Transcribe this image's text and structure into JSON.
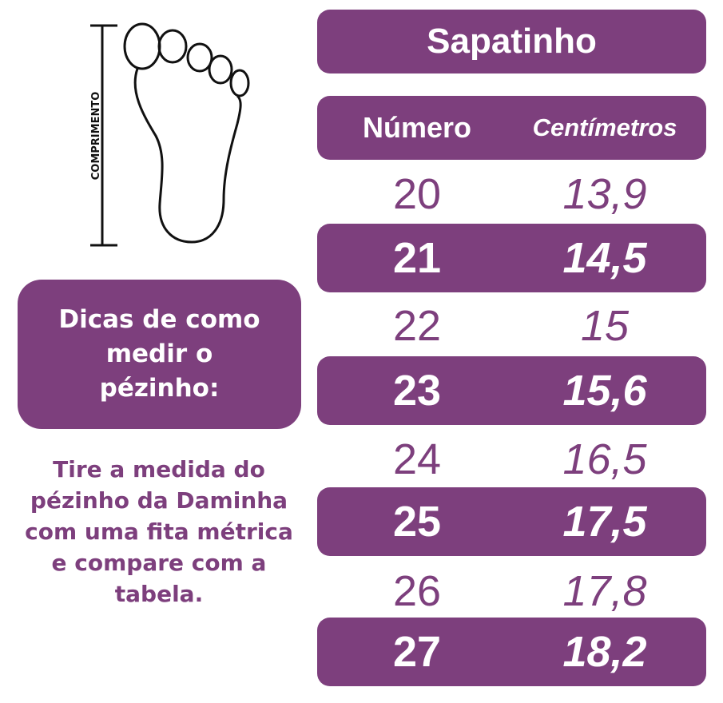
{
  "illustration": {
    "length_label": "COMPRIMENTO"
  },
  "tips": {
    "heading": "Dicas de como medir o pézinho:",
    "body": "Tire a medida do pézinho da Daminha com uma fita métrica e compare com a tabela."
  },
  "table": {
    "title": "Sapatinho",
    "headers": [
      "Número",
      "Centímetros"
    ],
    "rows": [
      {
        "numero": "20",
        "cm": "13,9"
      },
      {
        "numero": "21",
        "cm": "14,5"
      },
      {
        "numero": "22",
        "cm": "15"
      },
      {
        "numero": "23",
        "cm": "15,6"
      },
      {
        "numero": "24",
        "cm": "16,5"
      },
      {
        "numero": "25",
        "cm": "17,5"
      },
      {
        "numero": "26",
        "cm": "17,8"
      },
      {
        "numero": "27",
        "cm": "18,2"
      }
    ]
  },
  "colors": {
    "accent": "#7d3f7d"
  }
}
